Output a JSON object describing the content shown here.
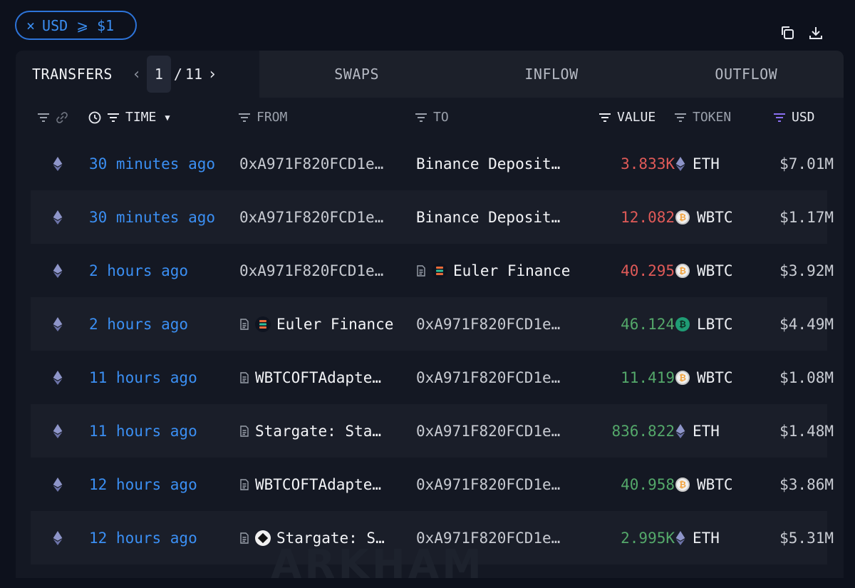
{
  "filter_chip": {
    "label": "USD ⩾ $1",
    "icon": "close-icon"
  },
  "toolbar_icons": [
    "copy-icon",
    "download-icon"
  ],
  "tabs": {
    "active": {
      "label": "TRANSFERS",
      "page_current": "1",
      "page_separator": "/",
      "page_total": "11"
    },
    "others": [
      {
        "label": "SWAPS"
      },
      {
        "label": "INFLOW"
      },
      {
        "label": "OUTFLOW"
      }
    ]
  },
  "columns": {
    "time": "TIME",
    "from": "FROM",
    "to": "TO",
    "value": "VALUE",
    "token": "TOKEN",
    "usd": "USD"
  },
  "colors": {
    "accent": "#3b8ff3",
    "negative": "#e05a58",
    "positive": "#54a86a",
    "usd_filter_active": "#8a6ff0"
  },
  "rows": [
    {
      "chain": "ethereum-icon",
      "time": "30 minutes ago",
      "from": "0xA971F820FCD1e…",
      "from_type": "address",
      "to": "Binance Deposit…",
      "to_type": "named",
      "value": "3.833K",
      "direction": "out",
      "token": "ETH",
      "token_icon": "eth-icon",
      "usd": "$7.01M"
    },
    {
      "chain": "ethereum-icon",
      "time": "30 minutes ago",
      "from": "0xA971F820FCD1e…",
      "from_type": "address",
      "to": "Binance Deposit…",
      "to_type": "named",
      "value": "12.082",
      "direction": "out",
      "token": "WBTC",
      "token_icon": "wbtc-icon",
      "usd": "$1.17M"
    },
    {
      "chain": "ethereum-icon",
      "time": "2 hours ago",
      "from": "0xA971F820FCD1e…",
      "from_type": "address",
      "to": "Euler Finance",
      "to_type": "contract-euler",
      "value": "40.295",
      "direction": "out",
      "token": "WBTC",
      "token_icon": "wbtc-icon",
      "usd": "$3.92M"
    },
    {
      "chain": "ethereum-icon",
      "time": "2 hours ago",
      "from": "Euler Finance",
      "from_type": "contract-euler",
      "to": "0xA971F820FCD1e…",
      "to_type": "address",
      "value": "46.124",
      "direction": "in",
      "token": "LBTC",
      "token_icon": "lbtc-icon",
      "usd": "$4.49M"
    },
    {
      "chain": "ethereum-icon",
      "time": "11 hours ago",
      "from": "WBTCOFTAdapte…",
      "from_type": "contract",
      "to": "0xA971F820FCD1e…",
      "to_type": "address",
      "value": "11.419",
      "direction": "in",
      "token": "WBTC",
      "token_icon": "wbtc-icon",
      "usd": "$1.08M"
    },
    {
      "chain": "ethereum-icon",
      "time": "11 hours ago",
      "from": "Stargate: Sta…",
      "from_type": "contract",
      "to": "0xA971F820FCD1e…",
      "to_type": "address",
      "value": "836.822",
      "direction": "in",
      "token": "ETH",
      "token_icon": "eth-icon",
      "usd": "$1.48M"
    },
    {
      "chain": "ethereum-icon",
      "time": "12 hours ago",
      "from": "WBTCOFTAdapte…",
      "from_type": "contract",
      "to": "0xA971F820FCD1e…",
      "to_type": "address",
      "value": "40.958",
      "direction": "in",
      "token": "WBTC",
      "token_icon": "wbtc-icon",
      "usd": "$3.86M"
    },
    {
      "chain": "ethereum-icon",
      "time": "12 hours ago",
      "from": "Stargate: S…",
      "from_type": "contract-stargate",
      "to": "0xA971F820FCD1e…",
      "to_type": "address",
      "value": "2.995K",
      "direction": "in",
      "token": "ETH",
      "token_icon": "eth-icon",
      "usd": "$5.31M"
    }
  ],
  "watermark": "ARKHAM"
}
